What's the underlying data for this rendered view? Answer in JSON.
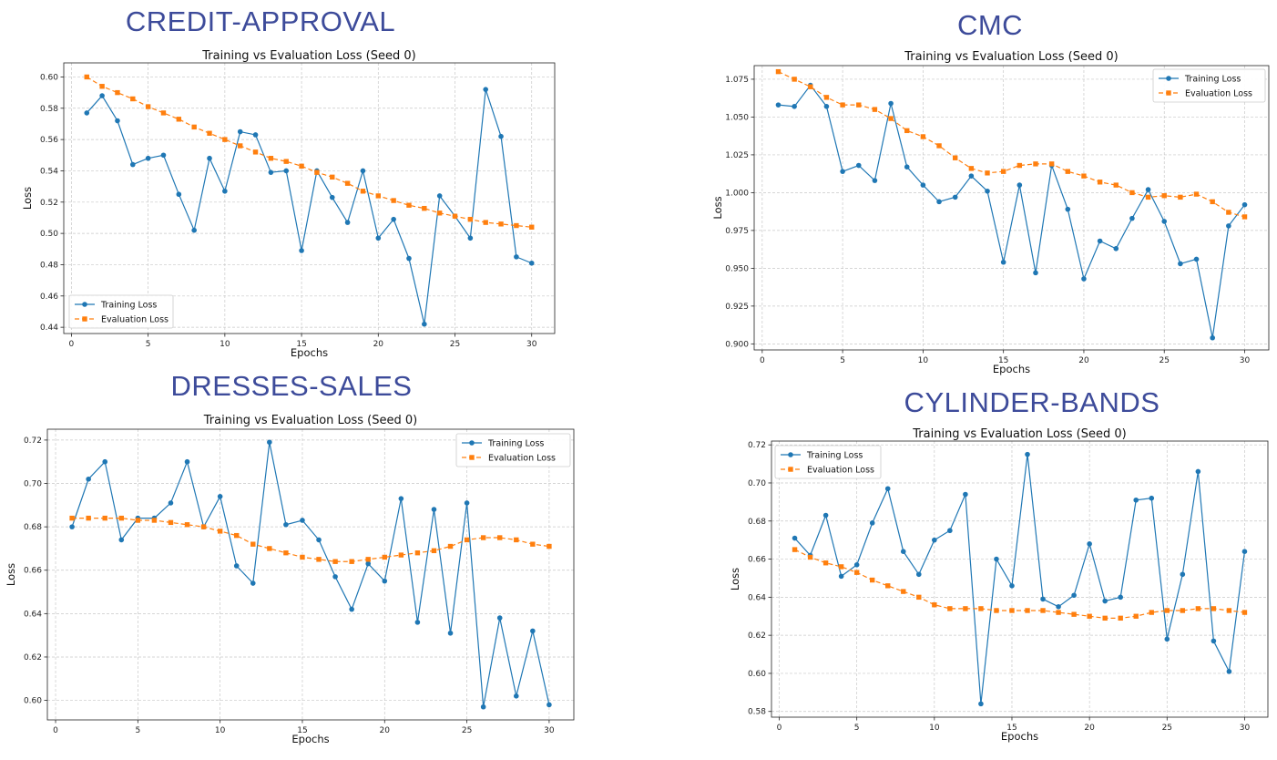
{
  "charts": [
    {
      "heading": "CREDIT-APPROVAL",
      "chart_data": {
        "type": "line",
        "title": "Training vs Evaluation Loss (Seed 0)",
        "xlabel": "Epochs",
        "ylabel": "Loss",
        "xlim": [
          -0.5,
          31.5
        ],
        "ylim": [
          0.436,
          0.609
        ],
        "xticks": [
          0,
          5,
          10,
          15,
          20,
          25,
          30
        ],
        "yticks": [
          0.44,
          0.46,
          0.48,
          0.5,
          0.52,
          0.54,
          0.56,
          0.58,
          0.6
        ],
        "ytick_decimals": 2,
        "grid": true,
        "legend": "lower-left",
        "x": [
          1,
          2,
          3,
          4,
          5,
          6,
          7,
          8,
          9,
          10,
          11,
          12,
          13,
          14,
          15,
          16,
          17,
          18,
          19,
          20,
          21,
          22,
          23,
          24,
          25,
          26,
          27,
          28,
          29,
          30
        ],
        "series": [
          {
            "name": "Training Loss",
            "color": "#1f77b4",
            "marker": "circle",
            "style": "solid",
            "values": [
              0.577,
              0.588,
              0.572,
              0.544,
              0.548,
              0.55,
              0.525,
              0.502,
              0.548,
              0.527,
              0.565,
              0.563,
              0.539,
              0.54,
              0.489,
              0.54,
              0.523,
              0.507,
              0.54,
              0.497,
              0.509,
              0.484,
              0.442,
              0.524,
              0.511,
              0.497,
              0.592,
              0.562,
              0.485,
              0.481
            ]
          },
          {
            "name": "Evaluation Loss",
            "color": "#ff7f0e",
            "marker": "square",
            "style": "dashed",
            "values": [
              0.6,
              0.594,
              0.59,
              0.586,
              0.581,
              0.577,
              0.573,
              0.568,
              0.564,
              0.56,
              0.556,
              0.552,
              0.548,
              0.546,
              0.543,
              0.539,
              0.536,
              0.532,
              0.527,
              0.524,
              0.521,
              0.518,
              0.516,
              0.513,
              0.511,
              0.509,
              0.507,
              0.506,
              0.505,
              0.504
            ]
          }
        ]
      }
    },
    {
      "heading": "CMC",
      "chart_data": {
        "type": "line",
        "title": "Training vs Evaluation Loss (Seed 0)",
        "xlabel": "Epochs",
        "ylabel": "Loss",
        "xlim": [
          -0.5,
          31.5
        ],
        "ylim": [
          0.896,
          1.084
        ],
        "xticks": [
          0,
          5,
          10,
          15,
          20,
          25,
          30
        ],
        "yticks": [
          0.9,
          0.925,
          0.95,
          0.975,
          1.0,
          1.025,
          1.05,
          1.075
        ],
        "ytick_decimals": 3,
        "grid": true,
        "legend": "upper-right",
        "x": [
          1,
          2,
          3,
          4,
          5,
          6,
          7,
          8,
          9,
          10,
          11,
          12,
          13,
          14,
          15,
          16,
          17,
          18,
          19,
          20,
          21,
          22,
          23,
          24,
          25,
          26,
          27,
          28,
          29,
          30
        ],
        "series": [
          {
            "name": "Training Loss",
            "color": "#1f77b4",
            "marker": "circle",
            "style": "solid",
            "values": [
              1.058,
              1.057,
              1.071,
              1.057,
              1.014,
              1.018,
              1.008,
              1.059,
              1.017,
              1.005,
              0.994,
              0.997,
              1.011,
              1.001,
              0.954,
              1.005,
              0.947,
              1.018,
              0.989,
              0.943,
              0.968,
              0.963,
              0.983,
              1.002,
              0.981,
              0.953,
              0.956,
              0.904,
              0.978,
              0.992
            ]
          },
          {
            "name": "Evaluation Loss",
            "color": "#ff7f0e",
            "marker": "square",
            "style": "dashed",
            "values": [
              1.08,
              1.075,
              1.07,
              1.063,
              1.058,
              1.058,
              1.055,
              1.049,
              1.041,
              1.037,
              1.031,
              1.023,
              1.016,
              1.013,
              1.014,
              1.018,
              1.019,
              1.019,
              1.014,
              1.011,
              1.007,
              1.005,
              1.0,
              0.997,
              0.998,
              0.997,
              0.999,
              0.994,
              0.987,
              0.984
            ]
          }
        ]
      }
    },
    {
      "heading": "DRESSES-SALES",
      "chart_data": {
        "type": "line",
        "title": "Training vs Evaluation Loss (Seed 0)",
        "xlabel": "Epochs",
        "ylabel": "Loss",
        "xlim": [
          -0.5,
          31.5
        ],
        "ylim": [
          0.591,
          0.725
        ],
        "xticks": [
          0,
          5,
          10,
          15,
          20,
          25,
          30
        ],
        "yticks": [
          0.6,
          0.62,
          0.64,
          0.66,
          0.68,
          0.7,
          0.72
        ],
        "ytick_decimals": 2,
        "grid": true,
        "legend": "upper-right",
        "x": [
          1,
          2,
          3,
          4,
          5,
          6,
          7,
          8,
          9,
          10,
          11,
          12,
          13,
          14,
          15,
          16,
          17,
          18,
          19,
          20,
          21,
          22,
          23,
          24,
          25,
          26,
          27,
          28,
          29,
          30
        ],
        "series": [
          {
            "name": "Training Loss",
            "color": "#1f77b4",
            "marker": "circle",
            "style": "solid",
            "values": [
              0.68,
              0.702,
              0.71,
              0.674,
              0.684,
              0.684,
              0.691,
              0.71,
              0.68,
              0.694,
              0.662,
              0.654,
              0.719,
              0.681,
              0.683,
              0.674,
              0.657,
              0.642,
              0.663,
              0.655,
              0.693,
              0.636,
              0.688,
              0.631,
              0.691,
              0.597,
              0.638,
              0.602,
              0.632,
              0.598
            ]
          },
          {
            "name": "Evaluation Loss",
            "color": "#ff7f0e",
            "marker": "square",
            "style": "dashed",
            "values": [
              0.684,
              0.684,
              0.684,
              0.684,
              0.683,
              0.683,
              0.682,
              0.681,
              0.68,
              0.678,
              0.676,
              0.672,
              0.67,
              0.668,
              0.666,
              0.665,
              0.664,
              0.664,
              0.665,
              0.666,
              0.667,
              0.668,
              0.669,
              0.671,
              0.674,
              0.675,
              0.675,
              0.674,
              0.672,
              0.671
            ]
          }
        ]
      }
    },
    {
      "heading": "CYLINDER-BANDS",
      "chart_data": {
        "type": "line",
        "title": "Training vs Evaluation Loss (Seed 0)",
        "xlabel": "Epochs",
        "ylabel": "Loss",
        "xlim": [
          -0.5,
          31.5
        ],
        "ylim": [
          0.577,
          0.722
        ],
        "xticks": [
          0,
          5,
          10,
          15,
          20,
          25,
          30
        ],
        "yticks": [
          0.58,
          0.6,
          0.62,
          0.64,
          0.66,
          0.68,
          0.7,
          0.72
        ],
        "ytick_decimals": 2,
        "grid": true,
        "legend": "upper-left",
        "x": [
          1,
          2,
          3,
          4,
          5,
          6,
          7,
          8,
          9,
          10,
          11,
          12,
          13,
          14,
          15,
          16,
          17,
          18,
          19,
          20,
          21,
          22,
          23,
          24,
          25,
          26,
          27,
          28,
          29,
          30
        ],
        "series": [
          {
            "name": "Training Loss",
            "color": "#1f77b4",
            "marker": "circle",
            "style": "solid",
            "values": [
              0.671,
              0.662,
              0.683,
              0.651,
              0.657,
              0.679,
              0.697,
              0.664,
              0.652,
              0.67,
              0.675,
              0.694,
              0.584,
              0.66,
              0.646,
              0.715,
              0.639,
              0.635,
              0.641,
              0.668,
              0.638,
              0.64,
              0.691,
              0.692,
              0.618,
              0.652,
              0.706,
              0.617,
              0.601,
              0.664
            ]
          },
          {
            "name": "Evaluation Loss",
            "color": "#ff7f0e",
            "marker": "square",
            "style": "dashed",
            "values": [
              0.665,
              0.661,
              0.658,
              0.656,
              0.653,
              0.649,
              0.646,
              0.643,
              0.64,
              0.636,
              0.634,
              0.634,
              0.634,
              0.633,
              0.633,
              0.633,
              0.633,
              0.632,
              0.631,
              0.63,
              0.629,
              0.629,
              0.63,
              0.632,
              0.633,
              0.633,
              0.634,
              0.634,
              0.633,
              0.632
            ]
          }
        ]
      }
    }
  ]
}
